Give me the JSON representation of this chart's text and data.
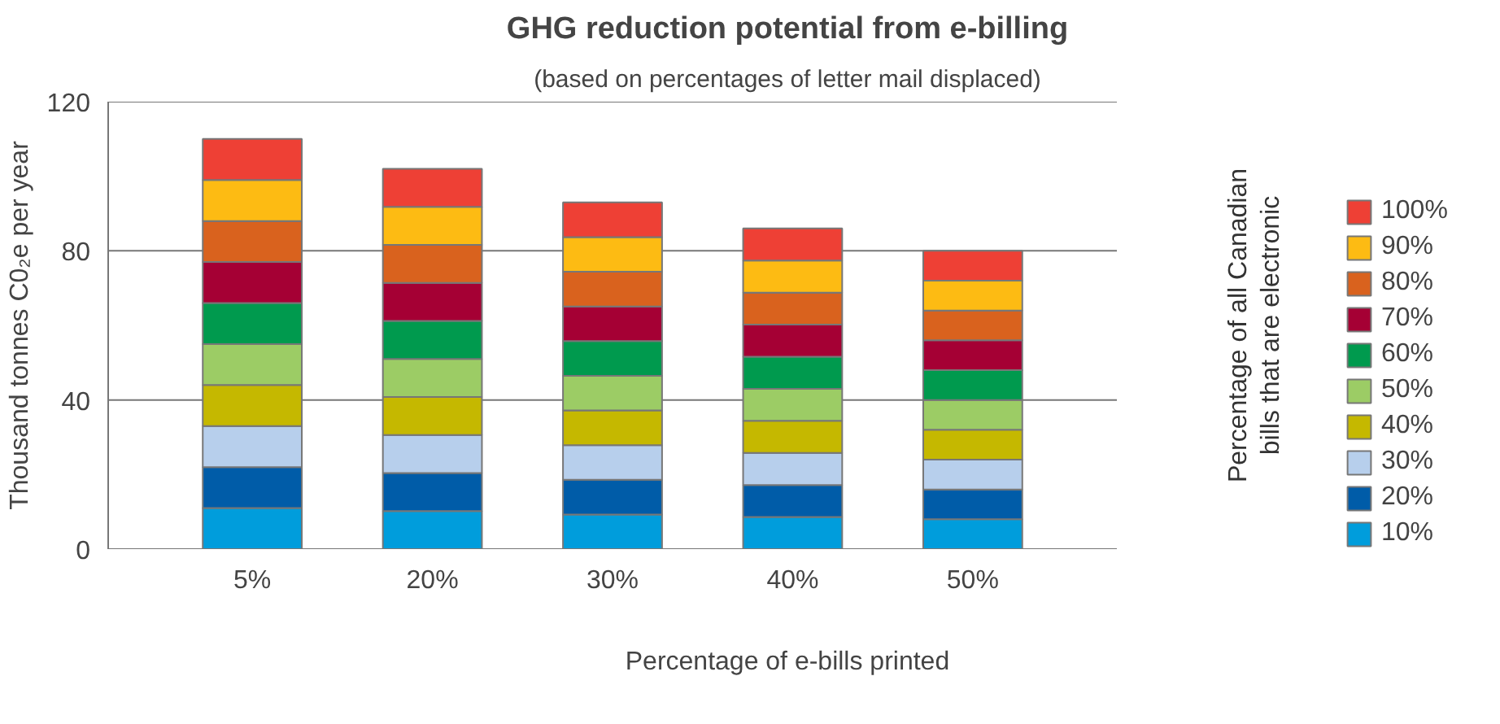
{
  "chart_data": {
    "type": "bar",
    "title": "GHG reduction potential from e-billing",
    "subtitle": "(based on percentages of letter mail displaced)",
    "xlabel": "Percentage of e-bills printed",
    "ylabel": "Thousand tonnes C0₂e per year",
    "legend_title": "Percentage of all Canadian bills that are electronic",
    "categories": [
      "5%",
      "20%",
      "30%",
      "40%",
      "50%"
    ],
    "stacked": true,
    "ylim": [
      0,
      120
    ],
    "yticks": [
      0,
      40,
      80,
      120
    ],
    "grid": "y",
    "legend": "right",
    "series": [
      {
        "name": "10%",
        "color": "#009ddc",
        "values": [
          11.0,
          10.2,
          9.3,
          8.6,
          8.0
        ]
      },
      {
        "name": "20%",
        "color": "#005ca8",
        "values": [
          11.0,
          10.2,
          9.3,
          8.6,
          8.0
        ]
      },
      {
        "name": "30%",
        "color": "#b7cfec",
        "values": [
          11.0,
          10.2,
          9.3,
          8.6,
          8.0
        ]
      },
      {
        "name": "40%",
        "color": "#c5b800",
        "values": [
          11.0,
          10.2,
          9.3,
          8.6,
          8.0
        ]
      },
      {
        "name": "50%",
        "color": "#9ccc65",
        "values": [
          11.0,
          10.2,
          9.3,
          8.6,
          8.0
        ]
      },
      {
        "name": "60%",
        "color": "#009a4e",
        "values": [
          11.0,
          10.2,
          9.3,
          8.6,
          8.0
        ]
      },
      {
        "name": "70%",
        "color": "#a50034",
        "values": [
          11.0,
          10.2,
          9.3,
          8.6,
          8.0
        ]
      },
      {
        "name": "80%",
        "color": "#d9621e",
        "values": [
          11.0,
          10.2,
          9.3,
          8.6,
          8.0
        ]
      },
      {
        "name": "90%",
        "color": "#fdbb13",
        "values": [
          11.0,
          10.2,
          9.3,
          8.6,
          8.0
        ]
      },
      {
        "name": "100%",
        "color": "#ee4035",
        "values": [
          11.0,
          10.2,
          9.3,
          8.6,
          8.0
        ]
      }
    ]
  }
}
